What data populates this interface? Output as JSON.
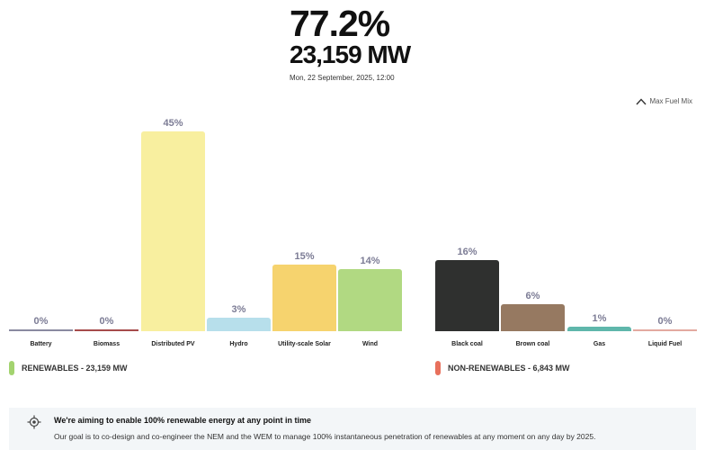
{
  "header": {
    "renewable_pct": "77.2%",
    "renewable_mw": "23,159 MW",
    "timestamp": "Mon, 22 September, 2025, 12:00"
  },
  "controls": {
    "max_fuel_mix_label": "Max Fuel Mix",
    "max_fuel_mix_icon": "chevron-up-icon"
  },
  "legend": {
    "renewables": {
      "label": "RENEWABLES - 23,159 MW",
      "color": "#a3d36f"
    },
    "non_renewables": {
      "label": "NON-RENEWABLES - 6,843 MW",
      "color": "#e8705c"
    }
  },
  "bars": [
    {
      "label": "Battery",
      "value": "0%",
      "color": "#8a8aa0"
    },
    {
      "label": "Biomass",
      "value": "0%",
      "color": "#a64b4b"
    },
    {
      "label": "Distributed PV",
      "value": "45%",
      "color": "#f8ef9f"
    },
    {
      "label": "Hydro",
      "value": "3%",
      "color": "#b7dfeb"
    },
    {
      "label": "Utility-scale Solar",
      "value": "15%",
      "color": "#f6d36e"
    },
    {
      "label": "Wind",
      "value": "14%",
      "color": "#b1d982"
    },
    {
      "label": "Black coal",
      "value": "16%",
      "color": "#2f302f"
    },
    {
      "label": "Brown coal",
      "value": "6%",
      "color": "#967961"
    },
    {
      "label": "Gas",
      "value": "1%",
      "color": "#5fb7ab"
    },
    {
      "label": "Liquid Fuel",
      "value": "0%",
      "color": "#e3a9a0"
    }
  ],
  "info": {
    "icon": "target-icon",
    "title": "We're aiming to enable 100% renewable energy at any point in time",
    "body": "Our goal is to co-design and co-engineer the NEM and the WEM to manage 100% instantaneous penetration of renewables at any moment on any day by 2025."
  },
  "chart_data": {
    "type": "bar",
    "title": "77.2% renewable — 23,159 MW",
    "subtitle": "Mon, 22 September, 2025, 12:00",
    "categories": [
      "Battery",
      "Biomass",
      "Distributed PV",
      "Hydro",
      "Utility-scale Solar",
      "Wind",
      "Black coal",
      "Brown coal",
      "Gas",
      "Liquid Fuel"
    ],
    "values": [
      0,
      0,
      45,
      3,
      15,
      14,
      16,
      6,
      1,
      0
    ],
    "unit": "%",
    "groups": [
      {
        "name": "RENEWABLES - 23,159 MW",
        "categories": [
          "Battery",
          "Biomass",
          "Distributed PV",
          "Hydro",
          "Utility-scale Solar",
          "Wind"
        ]
      },
      {
        "name": "NON-RENEWABLES - 6,843 MW",
        "categories": [
          "Black coal",
          "Brown coal",
          "Gas",
          "Liquid Fuel"
        ]
      }
    ],
    "xlabel": "",
    "ylabel": "",
    "grid": false,
    "legend_position": "bottom"
  }
}
